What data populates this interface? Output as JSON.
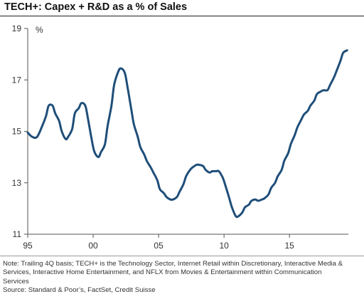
{
  "chart_data": {
    "type": "line",
    "title": "TECH+: Capex + R&D as a % of Sales",
    "ylabel": "%",
    "xlabel": "",
    "ylim": [
      11,
      19
    ],
    "xlim": [
      1995,
      2019.5
    ],
    "yticks": [
      11,
      13,
      15,
      17,
      19
    ],
    "xticks": [
      1995,
      2000,
      2005,
      2010,
      2015
    ],
    "xtick_labels": [
      "95",
      "00",
      "05",
      "10",
      "15"
    ],
    "grid": false,
    "legend": "none",
    "line_color": "#1f4e79",
    "series": [
      {
        "x": [
          1995.0,
          1995.3,
          1995.6,
          1995.8,
          1996.1,
          1996.4,
          1996.6,
          1996.9,
          1997.1,
          1997.4,
          1997.6,
          1997.9,
          1998.1,
          1998.4,
          1998.6,
          1998.9,
          1999.1,
          1999.4,
          1999.6,
          1999.9,
          2000.1,
          2000.4,
          2000.6,
          2000.9,
          2001.1,
          2001.4,
          2001.6,
          2001.9,
          2002.1,
          2002.4,
          2002.6,
          2002.9,
          2003.1,
          2003.4,
          2003.6,
          2003.9,
          2004.1,
          2004.4,
          2004.6,
          2004.9,
          2005.1,
          2005.4,
          2005.6,
          2005.9,
          2006.1,
          2006.4,
          2006.6,
          2006.9,
          2007.1,
          2007.4,
          2007.6,
          2007.9,
          2008.1,
          2008.4,
          2008.6,
          2008.9,
          2009.1,
          2009.4,
          2009.6,
          2009.9,
          2010.1,
          2010.4,
          2010.6,
          2010.9,
          2011.1,
          2011.4,
          2011.6,
          2011.9,
          2012.1,
          2012.4,
          2012.6,
          2012.9,
          2013.1,
          2013.4,
          2013.6,
          2013.9,
          2014.1,
          2014.4,
          2014.6,
          2014.9,
          2015.1,
          2015.4,
          2015.6,
          2015.9,
          2016.1,
          2016.4,
          2016.6,
          2016.9,
          2017.1,
          2017.4,
          2017.6,
          2017.9,
          2018.1,
          2018.4,
          2018.6,
          2018.9,
          2019.1,
          2019.4
        ],
        "values": [
          14.95,
          14.8,
          14.75,
          14.85,
          15.2,
          15.6,
          16.0,
          16.0,
          15.7,
          15.4,
          15.0,
          14.7,
          14.8,
          15.1,
          15.7,
          15.9,
          16.1,
          16.0,
          15.5,
          14.65,
          14.2,
          14.0,
          14.2,
          14.5,
          15.2,
          16.0,
          16.8,
          17.3,
          17.45,
          17.3,
          16.8,
          15.9,
          15.3,
          14.8,
          14.4,
          14.1,
          13.85,
          13.6,
          13.4,
          13.1,
          12.75,
          12.6,
          12.45,
          12.35,
          12.35,
          12.45,
          12.65,
          12.95,
          13.25,
          13.5,
          13.6,
          13.7,
          13.7,
          13.65,
          13.5,
          13.4,
          13.45,
          13.45,
          13.45,
          13.2,
          12.9,
          12.4,
          12.05,
          11.7,
          11.7,
          11.85,
          12.05,
          12.15,
          12.3,
          12.35,
          12.3,
          12.35,
          12.4,
          12.55,
          12.8,
          13.0,
          13.25,
          13.5,
          13.85,
          14.15,
          14.5,
          14.85,
          15.15,
          15.45,
          15.65,
          15.8,
          16.0,
          16.2,
          16.45,
          16.55,
          16.6,
          16.6,
          16.8,
          17.1,
          17.35,
          17.75,
          18.05,
          18.15
        ]
      }
    ]
  },
  "notes": {
    "line1": "Note: Trailing 4Q basis; TECH+ is the Technology Sector, Internet Retail within Discretionary, Interactive Media &",
    "line2": "Services, Interactive Home Entertainment, and NFLX from Movies & Entertainment within Communication",
    "line3": "Services",
    "source": "Source: Standard & Poor’s, FactSet, Credit Suisse"
  }
}
